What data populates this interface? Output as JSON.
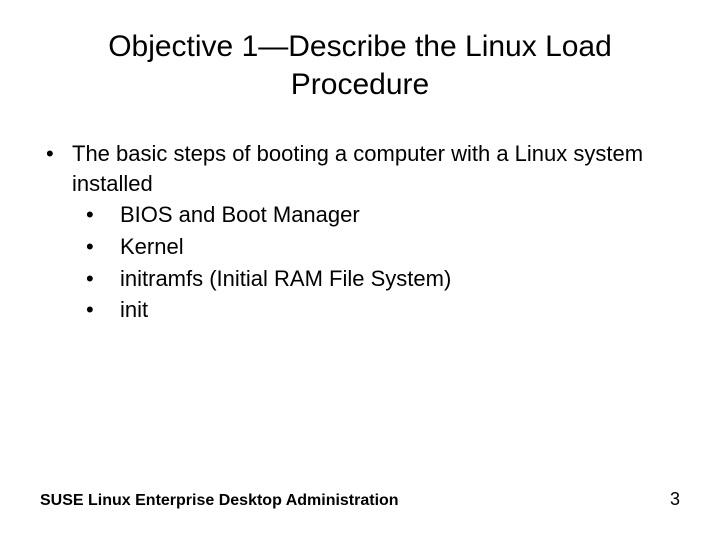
{
  "title": "Objective 1—Describe the Linux Load Procedure",
  "bullets": {
    "main": "The basic steps of booting a computer with a Linux system installed",
    "sub": [
      "BIOS and Boot Manager",
      "Kernel",
      "initramfs (Initial RAM File System)",
      "init"
    ]
  },
  "footer": {
    "left": "SUSE Linux Enterprise Desktop Administration",
    "page": "3"
  },
  "style": {
    "background_color": "#ffffff",
    "text_color": "#000000",
    "title_fontsize": 30,
    "body_fontsize": 22,
    "footer_fontsize": 16,
    "font_family": "Arial"
  }
}
